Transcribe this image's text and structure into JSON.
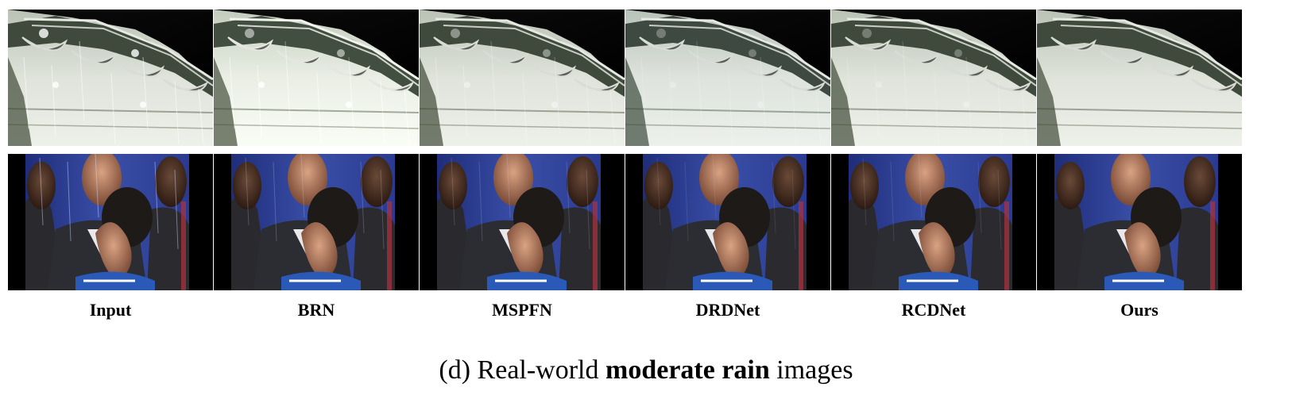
{
  "columns": [
    {
      "label": "Input"
    },
    {
      "label": "BRN"
    },
    {
      "label": "MSPFN"
    },
    {
      "label": "DRDNet"
    },
    {
      "label": "RCDNet"
    },
    {
      "label": "Ours"
    }
  ],
  "caption": {
    "index": "(d)",
    "prefix": "Real-world",
    "emphasis": "moderate rain",
    "suffix": "images"
  }
}
